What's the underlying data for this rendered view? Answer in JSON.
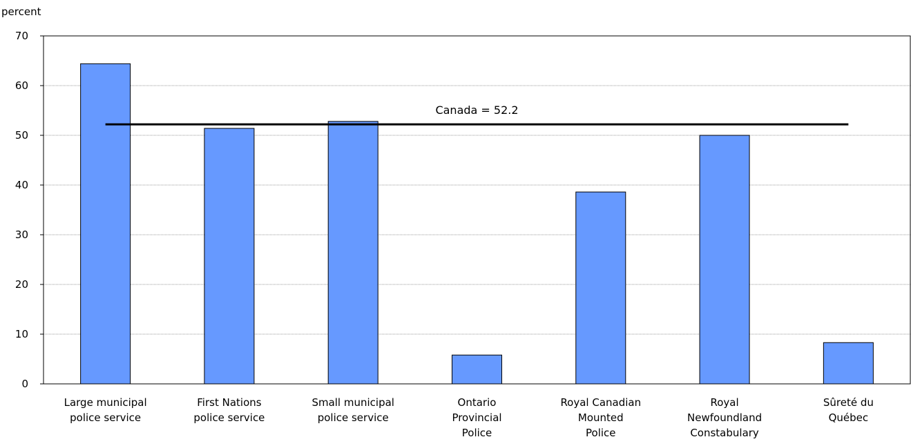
{
  "chart_data": {
    "type": "bar",
    "ylabel": "percent",
    "ylim": [
      0,
      70
    ],
    "yticks": [
      0,
      10,
      20,
      30,
      40,
      50,
      60,
      70
    ],
    "grid": true,
    "categories": [
      [
        "Large municipal",
        "police service"
      ],
      [
        "First Nations",
        "police service"
      ],
      [
        "Small municipal",
        "police service"
      ],
      [
        "Ontario",
        "Provincial",
        "Police"
      ],
      [
        "Royal Canadian",
        "Mounted",
        "Police"
      ],
      [
        "Royal",
        "Newfoundland",
        "Constabulary"
      ],
      [
        "Sûreté du",
        "Québec"
      ]
    ],
    "values": [
      64.4,
      51.4,
      52.8,
      5.8,
      38.6,
      50.0,
      8.3
    ],
    "bar_color": "#6699ff",
    "reference_line": {
      "value": 52.2,
      "label": "Canada = 52.2"
    }
  }
}
